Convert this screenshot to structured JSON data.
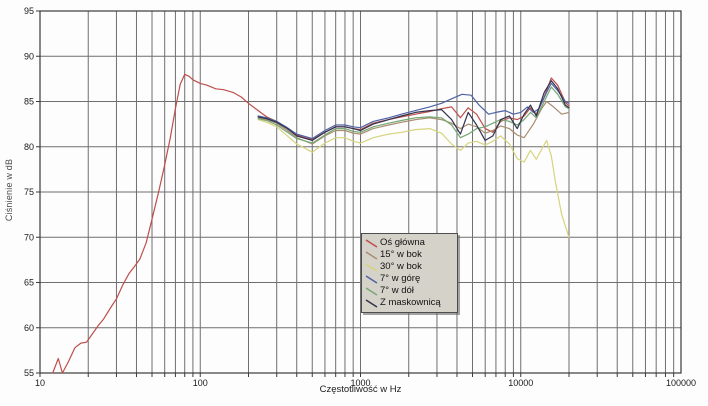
{
  "chart_data": {
    "type": "line",
    "title": "",
    "xlabel": "Częstotliwość w Hz",
    "ylabel": "Ciśnienie w dB",
    "x_scale": "log",
    "xlim": [
      10,
      100000
    ],
    "ylim": [
      55,
      95
    ],
    "grid": true,
    "legend_position": "inside-bottom-center",
    "x_ticks": [
      10,
      100,
      1000,
      10000,
      100000
    ],
    "x_tick_labels": [
      "10",
      "100",
      "1000",
      "10000",
      "100000"
    ],
    "y_ticks": [
      55,
      60,
      65,
      70,
      75,
      80,
      85,
      90,
      95
    ],
    "y_tick_labels": [
      "55",
      "60",
      "65",
      "70",
      "75",
      "80",
      "85",
      "90",
      "95"
    ],
    "colors": {
      "grid": "#6f6f6f",
      "axis": "#3a3a3a",
      "legend_bg": "#d5d2ca",
      "legend_border": "#4d4d4d"
    },
    "series": [
      {
        "name": "Oś główna",
        "color": "#bc4f4b",
        "points": [
          [
            12,
            55
          ],
          [
            13,
            56.6
          ],
          [
            13.8,
            55.0
          ],
          [
            15,
            56.2
          ],
          [
            16.5,
            57.8
          ],
          [
            18,
            58.3
          ],
          [
            19.5,
            58.4
          ],
          [
            21,
            59.2
          ],
          [
            23,
            60.2
          ],
          [
            25,
            61.0
          ],
          [
            28,
            62.4
          ],
          [
            30,
            63.2
          ],
          [
            33,
            64.8
          ],
          [
            36,
            66.0
          ],
          [
            39,
            66.8
          ],
          [
            42,
            67.6
          ],
          [
            46,
            69.4
          ],
          [
            50,
            72.0
          ],
          [
            55,
            75.0
          ],
          [
            60,
            78.0
          ],
          [
            65,
            81.0
          ],
          [
            70,
            84.2
          ],
          [
            75,
            86.9
          ],
          [
            80,
            88.0
          ],
          [
            85,
            87.8
          ],
          [
            90,
            87.4
          ],
          [
            100,
            87.0
          ],
          [
            110,
            86.8
          ],
          [
            125,
            86.4
          ],
          [
            140,
            86.3
          ],
          [
            160,
            86.0
          ],
          [
            180,
            85.5
          ],
          [
            200,
            84.8
          ],
          [
            230,
            84.0
          ],
          [
            260,
            83.3
          ],
          [
            300,
            82.8
          ],
          [
            350,
            82.0
          ],
          [
            400,
            81.3
          ],
          [
            450,
            81.0
          ],
          [
            500,
            80.8
          ],
          [
            600,
            81.6
          ],
          [
            700,
            82.2
          ],
          [
            800,
            82.2
          ],
          [
            900,
            82.0
          ],
          [
            1000,
            81.9
          ],
          [
            1200,
            82.6
          ],
          [
            1500,
            83.0
          ],
          [
            1800,
            83.3
          ],
          [
            2200,
            83.6
          ],
          [
            2700,
            83.9
          ],
          [
            3200,
            84.2
          ],
          [
            3700,
            84.4
          ],
          [
            4200,
            83.2
          ],
          [
            4700,
            84.3
          ],
          [
            5300,
            83.6
          ],
          [
            6000,
            82.0
          ],
          [
            6700,
            81.6
          ],
          [
            7500,
            82.8
          ],
          [
            8500,
            83.2
          ],
          [
            9500,
            83.0
          ],
          [
            10500,
            83.4
          ],
          [
            11500,
            84.3
          ],
          [
            12500,
            83.6
          ],
          [
            14000,
            85.5
          ],
          [
            15500,
            87.6
          ],
          [
            17000,
            86.8
          ],
          [
            19000,
            84.9
          ],
          [
            20000,
            84.5
          ]
        ]
      },
      {
        "name": "15° w bok",
        "color": "#a98d70",
        "points": [
          [
            230,
            83.2
          ],
          [
            260,
            83.0
          ],
          [
            300,
            82.6
          ],
          [
            350,
            81.8
          ],
          [
            400,
            81.0
          ],
          [
            500,
            80.3
          ],
          [
            600,
            81.2
          ],
          [
            700,
            81.8
          ],
          [
            800,
            81.8
          ],
          [
            900,
            81.5
          ],
          [
            1000,
            81.4
          ],
          [
            1200,
            82.0
          ],
          [
            1500,
            82.4
          ],
          [
            1800,
            82.7
          ],
          [
            2200,
            83.0
          ],
          [
            2700,
            83.2
          ],
          [
            3200,
            83.0
          ],
          [
            3700,
            82.6
          ],
          [
            4200,
            82.0
          ],
          [
            4700,
            82.5
          ],
          [
            5300,
            82.2
          ],
          [
            6000,
            81.5
          ],
          [
            6700,
            81.8
          ],
          [
            7500,
            82.3
          ],
          [
            8500,
            82.0
          ],
          [
            9500,
            81.3
          ],
          [
            10500,
            81.0
          ],
          [
            12000,
            82.5
          ],
          [
            13500,
            84.2
          ],
          [
            14500,
            85.0
          ],
          [
            16000,
            84.4
          ],
          [
            18000,
            83.6
          ],
          [
            20000,
            83.8
          ]
        ]
      },
      {
        "name": "30° w bok",
        "color": "#d6d47e",
        "points": [
          [
            230,
            83.0
          ],
          [
            260,
            82.7
          ],
          [
            300,
            82.2
          ],
          [
            350,
            81.2
          ],
          [
            400,
            80.3
          ],
          [
            500,
            79.4
          ],
          [
            600,
            80.4
          ],
          [
            700,
            81.0
          ],
          [
            800,
            81.0
          ],
          [
            900,
            80.6
          ],
          [
            1000,
            80.4
          ],
          [
            1200,
            81.0
          ],
          [
            1500,
            81.4
          ],
          [
            1800,
            81.6
          ],
          [
            2200,
            81.9
          ],
          [
            2700,
            82.0
          ],
          [
            3200,
            81.5
          ],
          [
            3700,
            80.3
          ],
          [
            4200,
            79.6
          ],
          [
            4700,
            80.4
          ],
          [
            5300,
            80.6
          ],
          [
            6000,
            80.2
          ],
          [
            6700,
            80.6
          ],
          [
            7500,
            81.2
          ],
          [
            8500,
            80.3
          ],
          [
            9500,
            78.7
          ],
          [
            10500,
            78.3
          ],
          [
            11500,
            79.6
          ],
          [
            12500,
            78.6
          ],
          [
            13200,
            79.4
          ],
          [
            14500,
            80.7
          ],
          [
            15500,
            79.0
          ],
          [
            16500,
            76.0
          ],
          [
            18000,
            72.5
          ],
          [
            20000,
            70.0
          ]
        ]
      },
      {
        "name": "7° w górę",
        "color": "#4f62a5",
        "points": [
          [
            230,
            83.4
          ],
          [
            260,
            83.2
          ],
          [
            300,
            82.8
          ],
          [
            350,
            82.1
          ],
          [
            400,
            81.4
          ],
          [
            500,
            80.9
          ],
          [
            600,
            81.8
          ],
          [
            700,
            82.4
          ],
          [
            800,
            82.4
          ],
          [
            900,
            82.2
          ],
          [
            1000,
            82.1
          ],
          [
            1200,
            82.8
          ],
          [
            1500,
            83.2
          ],
          [
            1800,
            83.6
          ],
          [
            2200,
            84.0
          ],
          [
            2700,
            84.4
          ],
          [
            3200,
            84.8
          ],
          [
            3700,
            85.3
          ],
          [
            4300,
            85.8
          ],
          [
            4900,
            85.7
          ],
          [
            5500,
            84.6
          ],
          [
            6300,
            83.6
          ],
          [
            7000,
            83.8
          ],
          [
            8000,
            84.0
          ],
          [
            9000,
            83.6
          ],
          [
            10000,
            83.8
          ],
          [
            11000,
            84.4
          ],
          [
            12000,
            83.8
          ],
          [
            13000,
            84.2
          ],
          [
            14500,
            86.0
          ],
          [
            15500,
            87.0
          ],
          [
            17000,
            86.2
          ],
          [
            19000,
            85.0
          ],
          [
            20000,
            84.8
          ]
        ]
      },
      {
        "name": "7° w dół",
        "color": "#74a874",
        "points": [
          [
            230,
            83.1
          ],
          [
            260,
            82.9
          ],
          [
            300,
            82.4
          ],
          [
            350,
            81.6
          ],
          [
            400,
            80.9
          ],
          [
            500,
            80.4
          ],
          [
            600,
            81.3
          ],
          [
            700,
            82.0
          ],
          [
            800,
            82.0
          ],
          [
            900,
            81.7
          ],
          [
            1000,
            81.6
          ],
          [
            1200,
            82.2
          ],
          [
            1500,
            82.6
          ],
          [
            1800,
            82.9
          ],
          [
            2200,
            83.2
          ],
          [
            2700,
            83.3
          ],
          [
            3200,
            83.2
          ],
          [
            3700,
            82.4
          ],
          [
            4200,
            81.0
          ],
          [
            4700,
            81.4
          ],
          [
            5300,
            82.0
          ],
          [
            6000,
            82.2
          ],
          [
            6700,
            82.6
          ],
          [
            7500,
            83.0
          ],
          [
            8500,
            82.8
          ],
          [
            9500,
            82.4
          ],
          [
            10500,
            83.0
          ],
          [
            11500,
            83.8
          ],
          [
            12500,
            83.2
          ],
          [
            14000,
            85.0
          ],
          [
            15500,
            86.6
          ],
          [
            17000,
            85.8
          ],
          [
            19000,
            84.4
          ],
          [
            20000,
            84.2
          ]
        ]
      },
      {
        "name": "Z maskownicą",
        "color": "#32324e",
        "points": [
          [
            230,
            83.3
          ],
          [
            260,
            83.1
          ],
          [
            300,
            82.7
          ],
          [
            350,
            82.0
          ],
          [
            400,
            81.2
          ],
          [
            500,
            80.7
          ],
          [
            600,
            81.6
          ],
          [
            700,
            82.2
          ],
          [
            800,
            82.2
          ],
          [
            900,
            82.0
          ],
          [
            1000,
            81.8
          ],
          [
            1200,
            82.5
          ],
          [
            1500,
            83.0
          ],
          [
            1800,
            83.4
          ],
          [
            2200,
            83.8
          ],
          [
            2700,
            84.0
          ],
          [
            3200,
            84.1
          ],
          [
            3700,
            83.0
          ],
          [
            4200,
            81.4
          ],
          [
            4700,
            83.8
          ],
          [
            5300,
            82.4
          ],
          [
            6000,
            80.7
          ],
          [
            6700,
            81.2
          ],
          [
            7500,
            83.0
          ],
          [
            8500,
            83.4
          ],
          [
            9500,
            82.0
          ],
          [
            10500,
            83.6
          ],
          [
            11500,
            84.6
          ],
          [
            12500,
            83.4
          ],
          [
            14000,
            86.0
          ],
          [
            15500,
            87.3
          ],
          [
            17000,
            86.4
          ],
          [
            19000,
            84.6
          ],
          [
            20000,
            84.3
          ]
        ]
      }
    ]
  }
}
